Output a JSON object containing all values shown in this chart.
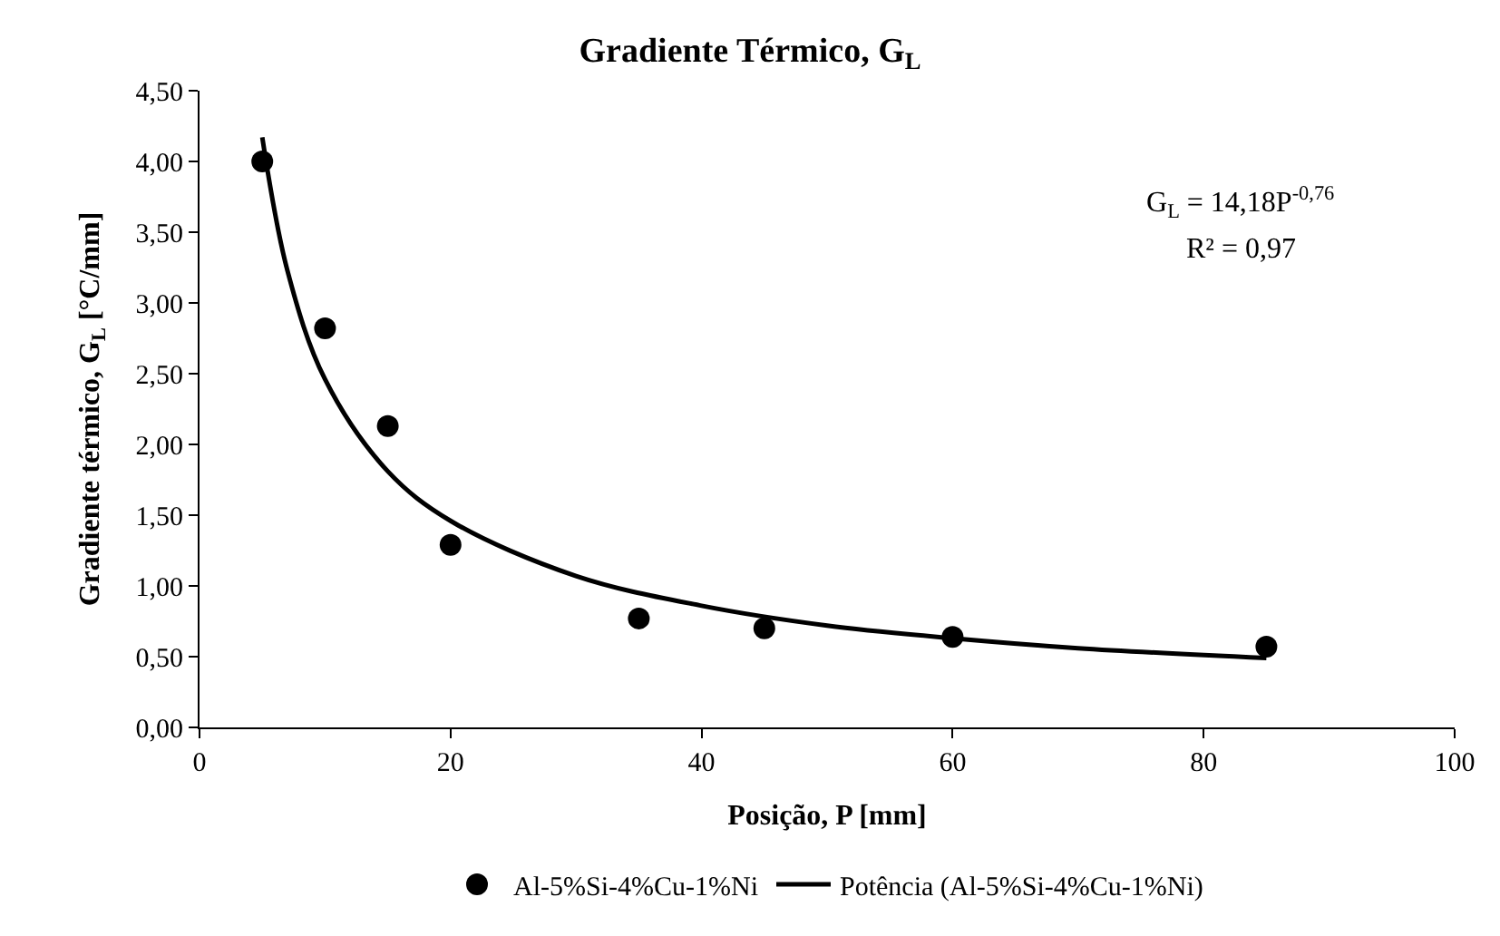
{
  "chart_data": {
    "type": "scatter",
    "title": "Gradiente Térmico, G$_{L}$",
    "xlabel": "Posição, P [mm]",
    "ylabel": "Gradiente térmico, G$_{L}$ [°C/mm]",
    "xlim": [
      0,
      100
    ],
    "xticks": [
      0,
      20,
      40,
      60,
      80,
      100
    ],
    "ylim": [
      0,
      4.5
    ],
    "yticks": [
      {
        "value": 0,
        "label": "0,00"
      },
      {
        "value": 0.5,
        "label": "0,50"
      },
      {
        "value": 1,
        "label": "1,00"
      },
      {
        "value": 1.5,
        "label": "1,50"
      },
      {
        "value": 2,
        "label": "2,00"
      },
      {
        "value": 2.5,
        "label": "2,50"
      },
      {
        "value": 3,
        "label": "3,00"
      },
      {
        "value": 3.5,
        "label": "3,50"
      },
      {
        "value": 4,
        "label": "4,00"
      },
      {
        "value": 4.5,
        "label": "4,50"
      }
    ],
    "legend": "bottom",
    "series": [
      {
        "name": "Al-5%Si-4%Cu-1%Ni",
        "marker": "circle",
        "color": "#000000",
        "x": [
          5,
          10,
          15,
          20,
          35,
          45,
          60,
          85
        ],
        "values": [
          4.0,
          2.82,
          2.13,
          1.29,
          0.77,
          0.7,
          0.64,
          0.57
        ]
      },
      {
        "name": "Potência (Al-5%Si-4%Cu-1%Ni)",
        "type": "line",
        "marker": "none",
        "line_style": "solid",
        "color": "#000000",
        "x": [
          5,
          7,
          10,
          15,
          20,
          30,
          40,
          50,
          60,
          70,
          85
        ],
        "values": [
          4.17,
          3.23,
          2.46,
          1.81,
          1.46,
          1.07,
          0.86,
          0.72,
          0.63,
          0.56,
          0.49
        ]
      }
    ],
    "annotations": [
      "G$_{L}$ = 14,18P$^{-0,76}$",
      "R² = 0,97"
    ]
  }
}
